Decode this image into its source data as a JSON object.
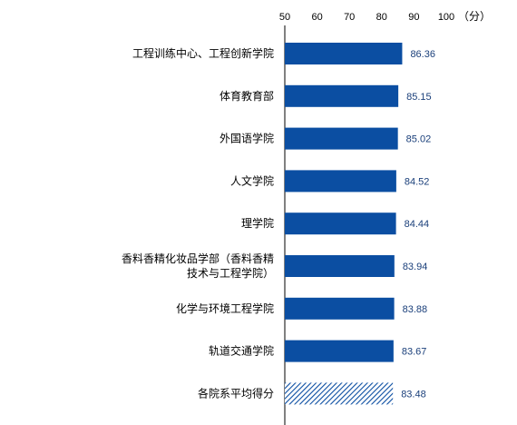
{
  "colors": {
    "bar": "#0b4ea2",
    "average_hatch_fg": "#0b4ea2",
    "average_hatch_bg": "#ffffff",
    "axis": "#000000",
    "value_text": "#1a3f7a"
  },
  "chart_data": {
    "type": "bar",
    "orientation": "horizontal",
    "xlim": [
      50,
      100
    ],
    "ticks": [
      50,
      60,
      70,
      80,
      90,
      100
    ],
    "unit": "（分）",
    "grid": false,
    "categories": [
      [
        "工程训练中心、工程创新学院"
      ],
      [
        "体育教育部"
      ],
      [
        "外国语学院"
      ],
      [
        "人文学院"
      ],
      [
        "理学院"
      ],
      [
        "香料香精化妆品学部（香料香精",
        "技术与工程学院）"
      ],
      [
        "化学与环境工程学院"
      ],
      [
        "轨道交通学院"
      ],
      [
        "各院系平均得分"
      ]
    ],
    "values": [
      86.36,
      85.15,
      85.02,
      84.52,
      84.44,
      83.94,
      83.88,
      83.67,
      83.48
    ],
    "value_labels": [
      "86.36",
      "85.15",
      "85.02",
      "84.52",
      "84.44",
      "83.94",
      "83.88",
      "83.67",
      "83.48"
    ],
    "highlight_index": 8
  }
}
